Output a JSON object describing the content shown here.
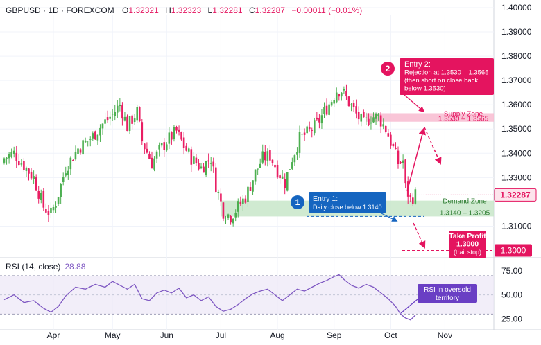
{
  "header": {
    "symbol": "GBPUSD · 1D · FOREXCOM",
    "o_label": "O",
    "o": "1.32321",
    "h_label": "H",
    "h": "1.32323",
    "l_label": "L",
    "l": "1.32281",
    "c_label": "C",
    "c": "1.32287",
    "change": "−0.00011 (−0.01%)"
  },
  "rsi_header": {
    "label": "RSI (14, close)",
    "value": "28.88"
  },
  "colors": {
    "up": "#4caf50",
    "down": "#e91e63",
    "rsi": "#7e57c2",
    "supply": "#f8bbd0",
    "demand": "#c8e6c9",
    "entry2": "#e4145f",
    "entry1": "#1565c0",
    "grid": "#f0f3fa"
  },
  "chart_data": [
    {
      "type": "candlestick",
      "title": "GBPUSD · 1D · FOREXCOM",
      "x_ticks": [
        "Apr",
        "May",
        "Jun",
        "Jul",
        "Aug",
        "Sep",
        "Oct",
        "Nov"
      ],
      "y_ticks": [
        "1.40000",
        "1.39000",
        "1.38000",
        "1.37000",
        "1.36000",
        "1.35000",
        "1.34000",
        "1.33000",
        "1.31000"
      ],
      "ylim": [
        1.297,
        1.402
      ],
      "last_price": "1.32287",
      "close_path": [
        [
          0,
          1.338
        ],
        [
          4,
          1.34
        ],
        [
          8,
          1.335
        ],
        [
          12,
          1.33
        ],
        [
          16,
          1.318
        ],
        [
          19,
          1.315
        ],
        [
          21,
          1.32
        ],
        [
          25,
          1.334
        ],
        [
          30,
          1.342
        ],
        [
          36,
          1.347
        ],
        [
          40,
          1.352
        ],
        [
          44,
          1.356
        ],
        [
          47,
          1.36
        ],
        [
          50,
          1.351
        ],
        [
          54,
          1.357
        ],
        [
          56,
          1.345
        ],
        [
          60,
          1.336
        ],
        [
          63,
          1.341
        ],
        [
          66,
          1.345
        ],
        [
          70,
          1.349
        ],
        [
          73,
          1.343
        ],
        [
          76,
          1.338
        ],
        [
          80,
          1.334
        ],
        [
          84,
          1.338
        ],
        [
          86,
          1.327
        ],
        [
          89,
          1.316
        ],
        [
          92,
          1.314
        ],
        [
          95,
          1.318
        ],
        [
          98,
          1.322
        ],
        [
          102,
          1.332
        ],
        [
          105,
          1.338
        ],
        [
          108,
          1.339
        ],
        [
          111,
          1.333
        ],
        [
          114,
          1.328
        ],
        [
          117,
          1.338
        ],
        [
          120,
          1.346
        ],
        [
          124,
          1.349
        ],
        [
          127,
          1.352
        ],
        [
          130,
          1.357
        ],
        [
          133,
          1.362
        ],
        [
          135,
          1.366
        ],
        [
          137,
          1.366
        ],
        [
          140,
          1.361
        ],
        [
          143,
          1.356
        ],
        [
          146,
          1.352
        ],
        [
          149,
          1.355
        ],
        [
          152,
          1.355
        ],
        [
          155,
          1.35
        ],
        [
          158,
          1.342
        ],
        [
          160,
          1.336
        ],
        [
          162,
          1.337
        ],
        [
          163,
          1.326
        ],
        [
          165,
          1.321
        ],
        [
          167,
          1.323
        ]
      ],
      "annotations": {
        "supply_zone_title": "Supply Zone",
        "supply_zone_range": "1.3530 – 1.3565",
        "demand_zone_title": "Demand Zone",
        "demand_zone_range": "1.3140 – 1.3205",
        "entry1_num": "1",
        "entry1_title": "Entry 1:",
        "entry1_text": "Daily close below 1.3140",
        "entry2_num": "2",
        "entry2_lines": [
          "Entry 2:",
          "Rejection at 1.3530 – 1.3565",
          "(then short on close back",
          "below 1.3530)"
        ],
        "take_profit_lines": [
          "Take Profit",
          "1.3000",
          "(trail stop)"
        ],
        "take_profit_price": "1.3000"
      },
      "levels": {
        "supply": [
          1.353,
          1.3565
        ],
        "demand": [
          1.314,
          1.3205
        ],
        "entry1": 1.314,
        "take_profit": 1.3
      }
    },
    {
      "type": "line",
      "title": "RSI (14, close)",
      "value": "28.88",
      "y_ticks": [
        "75.00",
        "50.00",
        "25.00"
      ],
      "ylim": [
        18,
        80
      ],
      "overbought": 70,
      "oversold": 30,
      "annotation": [
        "RSI in oversold",
        "territory"
      ],
      "points": [
        [
          0,
          45
        ],
        [
          4,
          50
        ],
        [
          8,
          42
        ],
        [
          12,
          44
        ],
        [
          16,
          36
        ],
        [
          19,
          32
        ],
        [
          22,
          38
        ],
        [
          25,
          49
        ],
        [
          29,
          58
        ],
        [
          33,
          56
        ],
        [
          37,
          61
        ],
        [
          41,
          58
        ],
        [
          44,
          64
        ],
        [
          47,
          60
        ],
        [
          50,
          56
        ],
        [
          53,
          61
        ],
        [
          56,
          46
        ],
        [
          59,
          44
        ],
        [
          62,
          52
        ],
        [
          65,
          55
        ],
        [
          68,
          52
        ],
        [
          71,
          57
        ],
        [
          74,
          47
        ],
        [
          77,
          50
        ],
        [
          80,
          44
        ],
        [
          83,
          48
        ],
        [
          86,
          38
        ],
        [
          89,
          33
        ],
        [
          92,
          35
        ],
        [
          95,
          40
        ],
        [
          98,
          46
        ],
        [
          101,
          51
        ],
        [
          104,
          54
        ],
        [
          107,
          56
        ],
        [
          110,
          50
        ],
        [
          113,
          44
        ],
        [
          116,
          50
        ],
        [
          119,
          56
        ],
        [
          122,
          54
        ],
        [
          125,
          58
        ],
        [
          128,
          62
        ],
        [
          131,
          65
        ],
        [
          134,
          69
        ],
        [
          136,
          71
        ],
        [
          138,
          66
        ],
        [
          141,
          60
        ],
        [
          144,
          57
        ],
        [
          147,
          61
        ],
        [
          150,
          58
        ],
        [
          153,
          52
        ],
        [
          156,
          46
        ],
        [
          159,
          38
        ],
        [
          161,
          30
        ],
        [
          163,
          26
        ],
        [
          165,
          24
        ],
        [
          167,
          28.88
        ]
      ]
    }
  ]
}
